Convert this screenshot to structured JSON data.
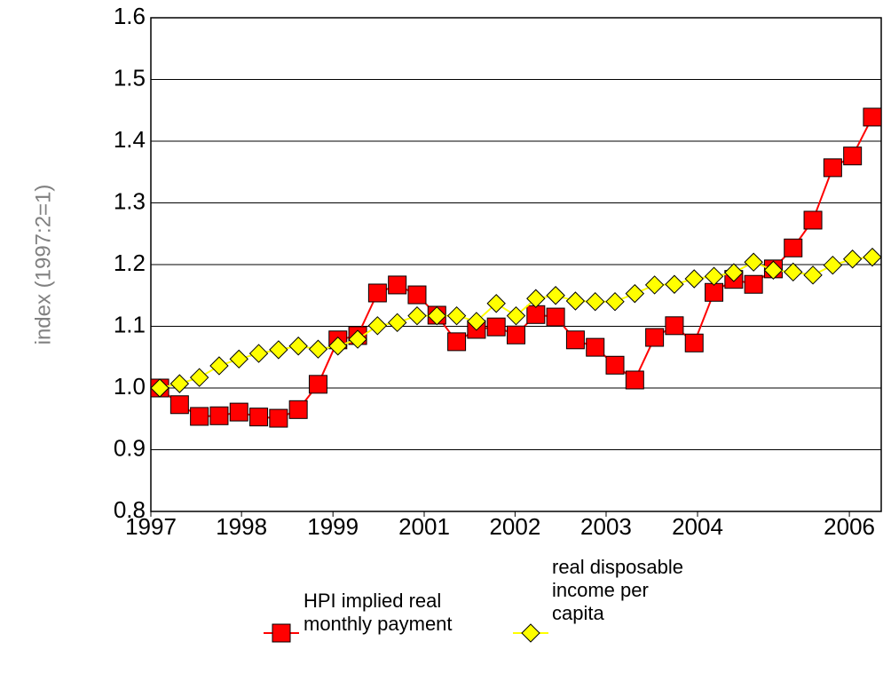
{
  "chart_data": {
    "type": "line",
    "ylabel": "index (1997:2=1)",
    "x": [
      0,
      1,
      2,
      3,
      4,
      5,
      6,
      7,
      8,
      9,
      10,
      11,
      12,
      13,
      14,
      15,
      16,
      17,
      18,
      19,
      20,
      21,
      22,
      23,
      24,
      25,
      26,
      27,
      28,
      29,
      30,
      31,
      32,
      33,
      34,
      35,
      36
    ],
    "xlim": [
      -0.45,
      36.45
    ],
    "xticks": [
      {
        "value": -0.45,
        "label": "1997"
      },
      {
        "value": 4.13,
        "label": "1998"
      },
      {
        "value": 8.75,
        "label": "1999"
      },
      {
        "value": 13.36,
        "label": "2001"
      },
      {
        "value": 17.95,
        "label": "2002"
      },
      {
        "value": 22.55,
        "label": "2003"
      },
      {
        "value": 27.17,
        "label": "2004"
      },
      {
        "value": 34.84,
        "label": "2006"
      }
    ],
    "ylim": [
      0.8,
      1.6
    ],
    "yticks": [
      0.8,
      0.9,
      {
        "value": 1,
        "label": "1.0"
      },
      1.1,
      1.2,
      1.3,
      1.4,
      1.5,
      1.6
    ],
    "grid": true,
    "legend": "bottom",
    "series": [
      {
        "name": "HPI implied real monthly payment",
        "color": "#ff0000",
        "marker": "square",
        "values": [
          1.0,
          0.973,
          0.954,
          0.955,
          0.961,
          0.953,
          0.951,
          0.965,
          1.006,
          1.078,
          1.085,
          1.154,
          1.167,
          1.151,
          1.118,
          1.075,
          1.095,
          1.099,
          1.086,
          1.119,
          1.115,
          1.078,
          1.066,
          1.037,
          1.013,
          1.082,
          1.101,
          1.073,
          1.155,
          1.176,
          1.168,
          1.193,
          1.227,
          1.272,
          1.357,
          1.376,
          1.439
        ]
      },
      {
        "name": "real disposable income per capita",
        "color": "#ffff00",
        "marker": "diamond",
        "values": [
          1.0,
          1.007,
          1.017,
          1.036,
          1.047,
          1.056,
          1.062,
          1.068,
          1.063,
          1.068,
          1.079,
          1.101,
          1.106,
          1.117,
          1.117,
          1.117,
          1.108,
          1.137,
          1.117,
          1.145,
          1.15,
          1.141,
          1.14,
          1.14,
          1.153,
          1.167,
          1.168,
          1.177,
          1.181,
          1.187,
          1.204,
          1.191,
          1.188,
          1.183,
          1.199,
          1.209,
          1.212
        ]
      }
    ]
  }
}
